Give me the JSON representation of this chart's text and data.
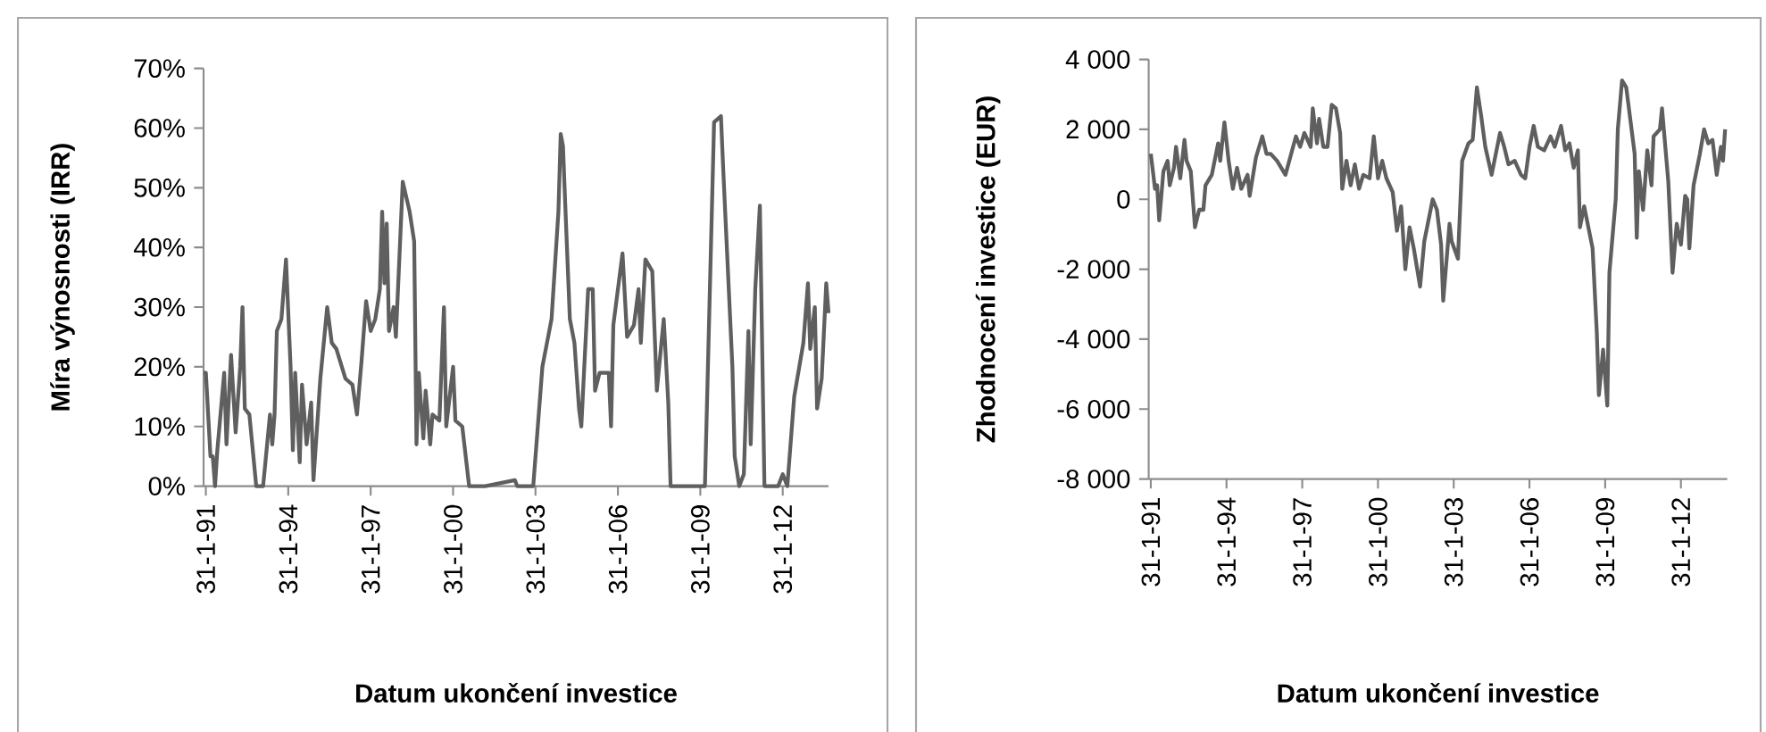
{
  "chart_data": [
    {
      "type": "line",
      "xlabel": "Datum ukončení investice",
      "ylabel": "Míra výnosnosti  (IRR)",
      "color": "#5f5f5f",
      "x": [
        "1991-01",
        "1991-02",
        "1991-04",
        "1991-05",
        "1991-06",
        "1991-07",
        "1991-10",
        "1991-11",
        "1992-01",
        "1992-03",
        "1992-05",
        "1992-06",
        "1992-07",
        "1992-09",
        "1992-12",
        "1993-03",
        "1993-06",
        "1993-07",
        "1993-08",
        "1993-09",
        "1993-11",
        "1994-01",
        "1994-03",
        "1994-04",
        "1994-05",
        "1994-07",
        "1994-08",
        "1994-10",
        "1994-12",
        "1995-01",
        "1995-04",
        "1995-07",
        "1995-09",
        "1995-11",
        "1996-03",
        "1996-06",
        "1996-08",
        "1996-10",
        "1996-12",
        "1997-02",
        "1997-04",
        "1997-06",
        "1997-07",
        "1997-08",
        "1997-09",
        "1997-10",
        "1997-12",
        "1998-01",
        "1998-04",
        "1998-07",
        "1998-09",
        "1998-10",
        "1998-11",
        "1999-01",
        "1999-02",
        "1999-04",
        "1999-05",
        "1999-08",
        "1999-10",
        "1999-11",
        "2000-02",
        "2000-03",
        "2000-06",
        "2000-09",
        "2001-04",
        "2002-05",
        "2002-06",
        "2003-01",
        "2003-05",
        "2003-09",
        "2003-12",
        "2004-01",
        "2004-02",
        "2004-03",
        "2004-05",
        "2004-07",
        "2004-09",
        "2004-10",
        "2005-01",
        "2005-03",
        "2005-04",
        "2005-06",
        "2005-10",
        "2005-11",
        "2005-12",
        "2006-04",
        "2006-06",
        "2006-09",
        "2006-11",
        "2006-12",
        "2007-02",
        "2007-05",
        "2007-07",
        "2007-10",
        "2007-12",
        "2008-01",
        "2009-04",
        "2009-08",
        "2009-11",
        "2009-12",
        "2010-04",
        "2010-05",
        "2010-07",
        "2010-09",
        "2010-11",
        "2010-12",
        "2011-02",
        "2011-04",
        "2011-06",
        "2011-12",
        "2012-02",
        "2012-04",
        "2012-07",
        "2012-11",
        "2013-01",
        "2013-02",
        "2013-04",
        "2013-05",
        "2013-07",
        "2013-09",
        "2013-10"
      ],
      "values": [
        19,
        19,
        5,
        5,
        0,
        6,
        19,
        7,
        22,
        9,
        20,
        30,
        13,
        12,
        0,
        0,
        12,
        7,
        12,
        26,
        28,
        38,
        20,
        6,
        19,
        4,
        17,
        7,
        14,
        1,
        18,
        30,
        24,
        23,
        18,
        17,
        12,
        21,
        31,
        26,
        28,
        33,
        46,
        34,
        44,
        26,
        30,
        25,
        51,
        46,
        41,
        7,
        19,
        8,
        16,
        7,
        12,
        11,
        30,
        10,
        20,
        11,
        10,
        0,
        0,
        1,
        0,
        0,
        20,
        28,
        46,
        59,
        57,
        47,
        28,
        24,
        13,
        10,
        33,
        33,
        16,
        19,
        19,
        10,
        27,
        39,
        25,
        27,
        33,
        24,
        38,
        36,
        16,
        28,
        14,
        0,
        0,
        61,
        62,
        53,
        20,
        5,
        0,
        2,
        26,
        7,
        33,
        47,
        0,
        0,
        2,
        0,
        15,
        24,
        34,
        23,
        30,
        13,
        18,
        34,
        29
      ],
      "xlim": [
        "1991-01",
        "2013-10"
      ],
      "ylim": [
        0,
        70
      ],
      "xticks": [
        {
          "value": "1991-01-31",
          "label": "31-1-91"
        },
        {
          "value": "1994-01-31",
          "label": "31-1-94"
        },
        {
          "value": "1997-01-31",
          "label": "31-1-97"
        },
        {
          "value": "2000-01-31",
          "label": "31-1-00"
        },
        {
          "value": "2003-01-31",
          "label": "31-1-03"
        },
        {
          "value": "2006-01-31",
          "label": "31-1-06"
        },
        {
          "value": "2009-01-31",
          "label": "31-1-09"
        },
        {
          "value": "2012-01-31",
          "label": "31-1-12"
        }
      ],
      "yticks": [
        {
          "value": 0,
          "label": "0%"
        },
        {
          "value": 10,
          "label": "10%"
        },
        {
          "value": 20,
          "label": "20%"
        },
        {
          "value": 30,
          "label": "30%"
        },
        {
          "value": 40,
          "label": "40%"
        },
        {
          "value": 50,
          "label": "50%"
        },
        {
          "value": 60,
          "label": "60%"
        },
        {
          "value": 70,
          "label": "70%"
        }
      ]
    },
    {
      "type": "line",
      "xlabel": "Datum ukončení  investice",
      "ylabel": "Zhodnocení investice  (EUR)",
      "color": "#5f5f5f",
      "x": [
        "1991-02",
        "1991-04",
        "1991-05",
        "1991-06",
        "1991-08",
        "1991-10",
        "1991-11",
        "1992-01",
        "1992-02",
        "1992-04",
        "1992-06",
        "1992-07",
        "1992-09",
        "1992-11",
        "1993-01",
        "1993-03",
        "1993-04",
        "1993-07",
        "1993-10",
        "1993-11",
        "1994-01",
        "1994-03",
        "1994-05",
        "1994-07",
        "1994-09",
        "1994-12",
        "1995-01",
        "1995-04",
        "1995-07",
        "1995-09",
        "1995-11",
        "1996-02",
        "1996-06",
        "1996-11",
        "1997-01",
        "1997-03",
        "1997-06",
        "1997-07",
        "1997-09",
        "1997-10",
        "1997-12",
        "1998-02",
        "1998-04",
        "1998-06",
        "1998-08",
        "1998-09",
        "1998-11",
        "1999-01",
        "1999-03",
        "1999-05",
        "1999-07",
        "1999-10",
        "1999-12",
        "2000-02",
        "2000-04",
        "2000-06",
        "2000-09",
        "2000-11",
        "2001-01",
        "2001-03",
        "2001-05",
        "2001-07",
        "2001-10",
        "2001-12",
        "2002-04",
        "2002-06",
        "2002-08",
        "2002-09",
        "2002-12",
        "2003-01",
        "2003-04",
        "2003-06",
        "2003-09",
        "2003-11",
        "2004-01",
        "2004-03",
        "2004-05",
        "2004-08",
        "2004-12",
        "2005-02",
        "2005-04",
        "2005-07",
        "2005-10",
        "2005-12",
        "2006-02",
        "2006-04",
        "2006-06",
        "2006-09",
        "2006-12",
        "2007-02",
        "2007-05",
        "2007-07",
        "2007-09",
        "2007-11",
        "2008-01",
        "2008-02",
        "2008-04",
        "2008-06",
        "2008-08",
        "2008-10",
        "2008-11",
        "2009-01",
        "2009-03",
        "2009-04",
        "2009-07",
        "2009-08",
        "2009-10",
        "2009-12",
        "2010-04",
        "2010-05",
        "2010-06",
        "2010-08",
        "2010-10",
        "2010-12",
        "2011-01",
        "2011-04",
        "2011-05",
        "2011-06",
        "2011-08",
        "2011-10",
        "2011-12",
        "2012-02",
        "2012-04",
        "2012-05",
        "2012-06",
        "2012-08",
        "2012-11",
        "2013-01",
        "2013-03",
        "2013-05",
        "2013-07",
        "2013-09",
        "2013-10",
        "2013-11"
      ],
      "values": [
        1300,
        300,
        400,
        -600,
        800,
        1100,
        400,
        900,
        1500,
        600,
        1700,
        1100,
        800,
        -800,
        -300,
        -300,
        400,
        700,
        1600,
        1100,
        2200,
        1100,
        300,
        900,
        300,
        700,
        100,
        1200,
        1800,
        1300,
        1300,
        1100,
        700,
        1800,
        1500,
        1900,
        1500,
        2600,
        1600,
        2300,
        1500,
        1500,
        2700,
        2600,
        1900,
        300,
        1100,
        400,
        1000,
        300,
        700,
        600,
        1800,
        600,
        1100,
        600,
        200,
        -900,
        -200,
        -2000,
        -800,
        -1400,
        -2500,
        -1200,
        0,
        -300,
        -1300,
        -2900,
        -700,
        -1200,
        -1700,
        1100,
        1600,
        1700,
        3200,
        2400,
        1500,
        700,
        1900,
        1500,
        1000,
        1100,
        700,
        600,
        1500,
        2100,
        1500,
        1400,
        1800,
        1500,
        2100,
        1400,
        1600,
        900,
        1400,
        -800,
        -200,
        -800,
        -1400,
        -3800,
        -5600,
        -4300,
        -5900,
        -2100,
        0,
        2000,
        3400,
        3200,
        1300,
        -1100,
        800,
        -300,
        1400,
        400,
        1800,
        2000,
        2600,
        1900,
        500,
        -2100,
        -700,
        -1300,
        100,
        0,
        -1400,
        400,
        1300,
        2000,
        1600,
        1700,
        700,
        1500,
        1100,
        2000
      ],
      "xlim": [
        "1991-01",
        "2013-12"
      ],
      "ylim": [
        -8000,
        4000
      ],
      "xticks": [
        {
          "value": "1991-01-31",
          "label": "31-1-91"
        },
        {
          "value": "1994-01-31",
          "label": "31-1-94"
        },
        {
          "value": "1997-01-31",
          "label": "31-1-97"
        },
        {
          "value": "2000-01-31",
          "label": "31-1-00"
        },
        {
          "value": "2003-01-31",
          "label": "31-1-03"
        },
        {
          "value": "2006-01-31",
          "label": "31-1-06"
        },
        {
          "value": "2009-01-31",
          "label": "31-1-09"
        },
        {
          "value": "2012-01-31",
          "label": "31-1-12"
        }
      ],
      "yticks": [
        {
          "value": -8000,
          "label": "-8 000"
        },
        {
          "value": -6000,
          "label": "-6 000"
        },
        {
          "value": -4000,
          "label": "-4 000"
        },
        {
          "value": -2000,
          "label": "-2 000"
        },
        0,
        {
          "value": 2000,
          "label": "2 000"
        },
        {
          "value": 4000,
          "label": "4 000"
        }
      ]
    }
  ]
}
